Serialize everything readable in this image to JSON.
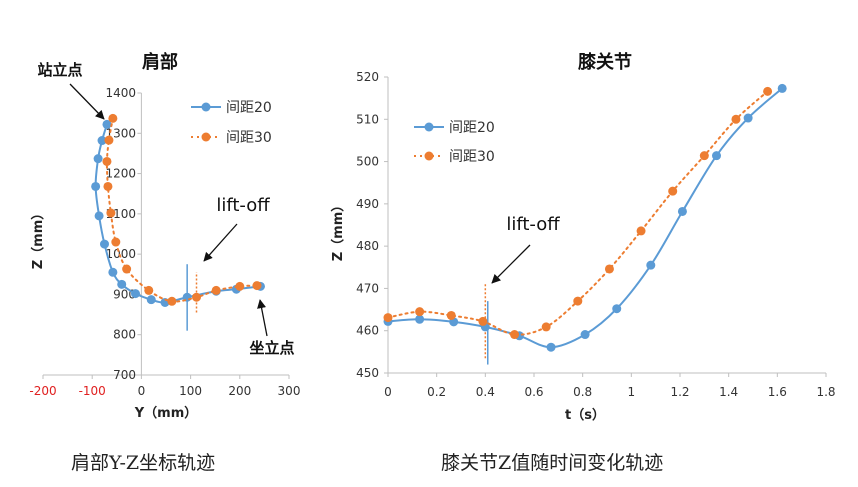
{
  "colors": {
    "series_20": "#5b9bd5",
    "series_30": "#ed7d31",
    "neg_ticks": "#e02020",
    "axis": "#bfbfbf",
    "text": "#333333"
  },
  "captions": {
    "left": "肩部Y-Z坐标轨迹",
    "right": "膝关节Z值随时间变化轨迹"
  },
  "chart_data": [
    {
      "type": "scatter",
      "title": "肩部",
      "xlabel": "Y（mm）",
      "ylabel": "Z（mm）",
      "xlim": [
        -200,
        300
      ],
      "ylim": [
        700,
        1400
      ],
      "x_ticks": [
        "-200",
        "-100",
        "0",
        "100",
        "200",
        "300"
      ],
      "y_ticks": [
        "700",
        "800",
        "900",
        "1000",
        "1100",
        "1200",
        "1300",
        "1400"
      ],
      "negative_tick_color": "red",
      "legend": "top-right",
      "grid": false,
      "series": [
        {
          "name": "间距20",
          "style": "solid-line-circle",
          "x": [
            -70,
            -80,
            -88,
            -93,
            -86,
            -75,
            -58,
            -40,
            -12,
            20,
            48,
            93,
            152,
            193,
            242
          ],
          "y": [
            1322,
            1282,
            1237,
            1168,
            1095,
            1025,
            955,
            925,
            902,
            887,
            880,
            893,
            908,
            913,
            920
          ]
        },
        {
          "name": "间距30",
          "style": "dotted-line-circle",
          "x": [
            -58,
            -66,
            -70,
            -68,
            -62,
            -52,
            -30,
            15,
            62,
            112,
            152,
            200,
            235
          ],
          "y": [
            1337,
            1283,
            1230,
            1168,
            1102,
            1030,
            963,
            910,
            883,
            893,
            910,
            920,
            922
          ]
        }
      ],
      "annotations": [
        {
          "text": "站立点",
          "points_to": {
            "x": -70,
            "y": 1322
          }
        },
        {
          "text": "lift-off",
          "points_to": {
            "x": 112,
            "y": 955
          }
        },
        {
          "text": "坐立点",
          "points_to": {
            "x": 242,
            "y": 920
          }
        }
      ],
      "markers": [
        {
          "type": "vertical",
          "color": "series_20",
          "style": "solid",
          "x": 93,
          "y_range": [
            810,
            975
          ]
        },
        {
          "type": "vertical",
          "color": "series_30",
          "style": "dotted",
          "x": 112,
          "y_range": [
            855,
            955
          ]
        }
      ]
    },
    {
      "type": "line",
      "title": "膝关节",
      "xlabel": "t（s）",
      "ylabel": "Z（mm）",
      "xlim": [
        0,
        1.8
      ],
      "ylim": [
        450,
        520
      ],
      "x_ticks": [
        "0",
        "0.2",
        "0.4",
        "0.6",
        "0.8",
        "1",
        "1.2",
        "1.4",
        "1.6",
        "1.8"
      ],
      "y_ticks": [
        "450",
        "460",
        "470",
        "480",
        "490",
        "500",
        "510",
        "520"
      ],
      "legend": "top-left",
      "grid": false,
      "series": [
        {
          "name": "间距20",
          "style": "solid-line-circle",
          "x": [
            0,
            0.13,
            0.27,
            0.4,
            0.54,
            0.67,
            0.81,
            0.94,
            1.08,
            1.21,
            1.35,
            1.48,
            1.62
          ],
          "y": [
            462.2,
            462.7,
            462.1,
            460.9,
            458.8,
            456.1,
            459.1,
            465.2,
            475.5,
            488.2,
            501.4,
            510.3,
            517.3
          ]
        },
        {
          "name": "间距30",
          "style": "dotted-line-circle",
          "x": [
            0,
            0.13,
            0.26,
            0.39,
            0.52,
            0.65,
            0.78,
            0.91,
            1.04,
            1.17,
            1.3,
            1.43,
            1.56
          ],
          "y": [
            463.1,
            464.5,
            463.6,
            462.2,
            459.1,
            460.9,
            467.0,
            474.6,
            483.6,
            493.0,
            501.4,
            510.0,
            516.6
          ]
        }
      ],
      "annotations": [
        {
          "text": "lift-off",
          "points_to": {
            "x": 0.4,
            "y": 475
          }
        }
      ],
      "markers": [
        {
          "type": "vertical",
          "color": "series_20",
          "style": "solid",
          "x": 0.41,
          "y_range": [
            452,
            467
          ]
        },
        {
          "type": "vertical",
          "color": "series_30",
          "style": "dotted",
          "x": 0.4,
          "y_range": [
            453.5,
            471
          ]
        }
      ]
    }
  ]
}
